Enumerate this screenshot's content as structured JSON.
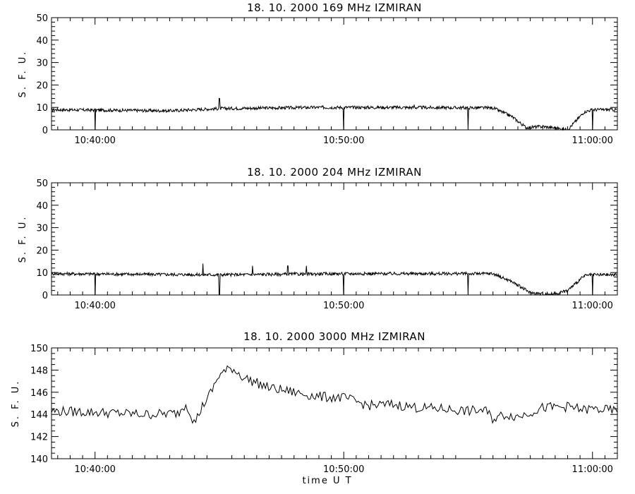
{
  "chart_data": [
    {
      "type": "line",
      "title": "18.  10.  2000    169 MHz    IZMIRAN",
      "ylabel": "S. F. U.",
      "xlabel": "",
      "ylim": [
        0,
        50
      ],
      "yticks": [
        "0",
        "10",
        "20",
        "30",
        "40",
        "50"
      ],
      "xlim": [
        "10:38:15",
        "11:01:00"
      ],
      "xticks": [
        "10:40:00",
        "10:50:00",
        "11:00:00"
      ],
      "baseline": 9,
      "dropout_times": [
        "10:40:00",
        "10:45:00",
        "10:50:00",
        "10:55:00",
        "11:00:00"
      ],
      "spikes": [
        {
          "x": "10:45:00",
          "y": 14
        },
        {
          "x": "10:52:50",
          "y": 11
        }
      ],
      "series": [
        {
          "x": [
            "10:38:15",
            "10:43:00",
            "10:45:00",
            "10:49:00",
            "10:52:00",
            "10:56:00",
            "10:56:45",
            "10:57:20",
            "10:58:00",
            "10:58:30",
            "10:59:00",
            "10:59:40",
            "11:00:00",
            "11:01:00"
          ],
          "values": [
            9,
            8.5,
            9.5,
            10,
            10,
            9.8,
            6,
            1,
            1.5,
            0.8,
            0,
            8,
            9,
            9
          ]
        }
      ]
    },
    {
      "type": "line",
      "title": "18.  10.  2000    204 MHz    IZMIRAN",
      "ylabel": "S. F. U.",
      "xlabel": "",
      "ylim": [
        0,
        50
      ],
      "yticks": [
        "0",
        "10",
        "20",
        "30",
        "40",
        "50"
      ],
      "xlim": [
        "10:38:15",
        "11:01:00"
      ],
      "xticks": [
        "10:40:00",
        "10:50:00",
        "11:00:00"
      ],
      "baseline": 9,
      "dropout_times": [
        "10:40:00",
        "10:45:00",
        "10:50:00",
        "10:55:00",
        "11:00:00"
      ],
      "spikes": [
        {
          "x": "10:44:20",
          "y": 14
        },
        {
          "x": "10:46:20",
          "y": 13
        },
        {
          "x": "10:47:45",
          "y": 13
        },
        {
          "x": "10:48:30",
          "y": 13
        }
      ],
      "series": [
        {
          "x": [
            "10:38:15",
            "10:45:00",
            "10:50:00",
            "10:53:00",
            "10:56:00",
            "10:56:45",
            "10:57:30",
            "10:58:00",
            "10:58:30",
            "10:59:00",
            "10:59:40",
            "11:00:00",
            "11:01:00"
          ],
          "values": [
            9.5,
            9,
            9.5,
            9.5,
            9.5,
            6,
            1,
            0.5,
            0.5,
            2,
            8.5,
            9,
            9
          ]
        }
      ]
    },
    {
      "type": "line",
      "title": "18.  10.  2000    3000 MHz    IZMIRAN",
      "ylabel": "S. F. U.",
      "xlabel": "time  U T",
      "ylim": [
        140,
        150
      ],
      "yticks": [
        "140",
        "142",
        "144",
        "146",
        "148",
        "150"
      ],
      "xlim": [
        "10:38:15",
        "11:01:00"
      ],
      "xticks": [
        "10:40:00",
        "10:50:00",
        "11:00:00"
      ],
      "series": [
        {
          "x": [
            "10:38:15",
            "10:40:00",
            "10:42:00",
            "10:43:20",
            "10:43:40",
            "10:44:00",
            "10:44:20",
            "10:44:40",
            "10:45:00",
            "10:45:30",
            "10:46:00",
            "10:47:00",
            "10:48:00",
            "10:49:00",
            "10:50:00",
            "10:51:00",
            "10:52:00",
            "10:53:00",
            "10:54:00",
            "10:55:00",
            "10:55:40",
            "10:56:00",
            "10:56:30",
            "10:57:00",
            "10:58:00",
            "10:59:00",
            "10:59:40",
            "11:00:00",
            "11:01:00"
          ],
          "values": [
            144.3,
            144.2,
            144.0,
            144.1,
            145.0,
            143.2,
            144.8,
            146.0,
            147.6,
            148.2,
            147.3,
            146.4,
            146.0,
            145.6,
            145.5,
            144.8,
            144.9,
            144.6,
            144.5,
            144.3,
            144.4,
            143.6,
            144.0,
            143.8,
            144.6,
            144.7,
            144.4,
            144.5,
            144.3
          ]
        }
      ]
    }
  ]
}
